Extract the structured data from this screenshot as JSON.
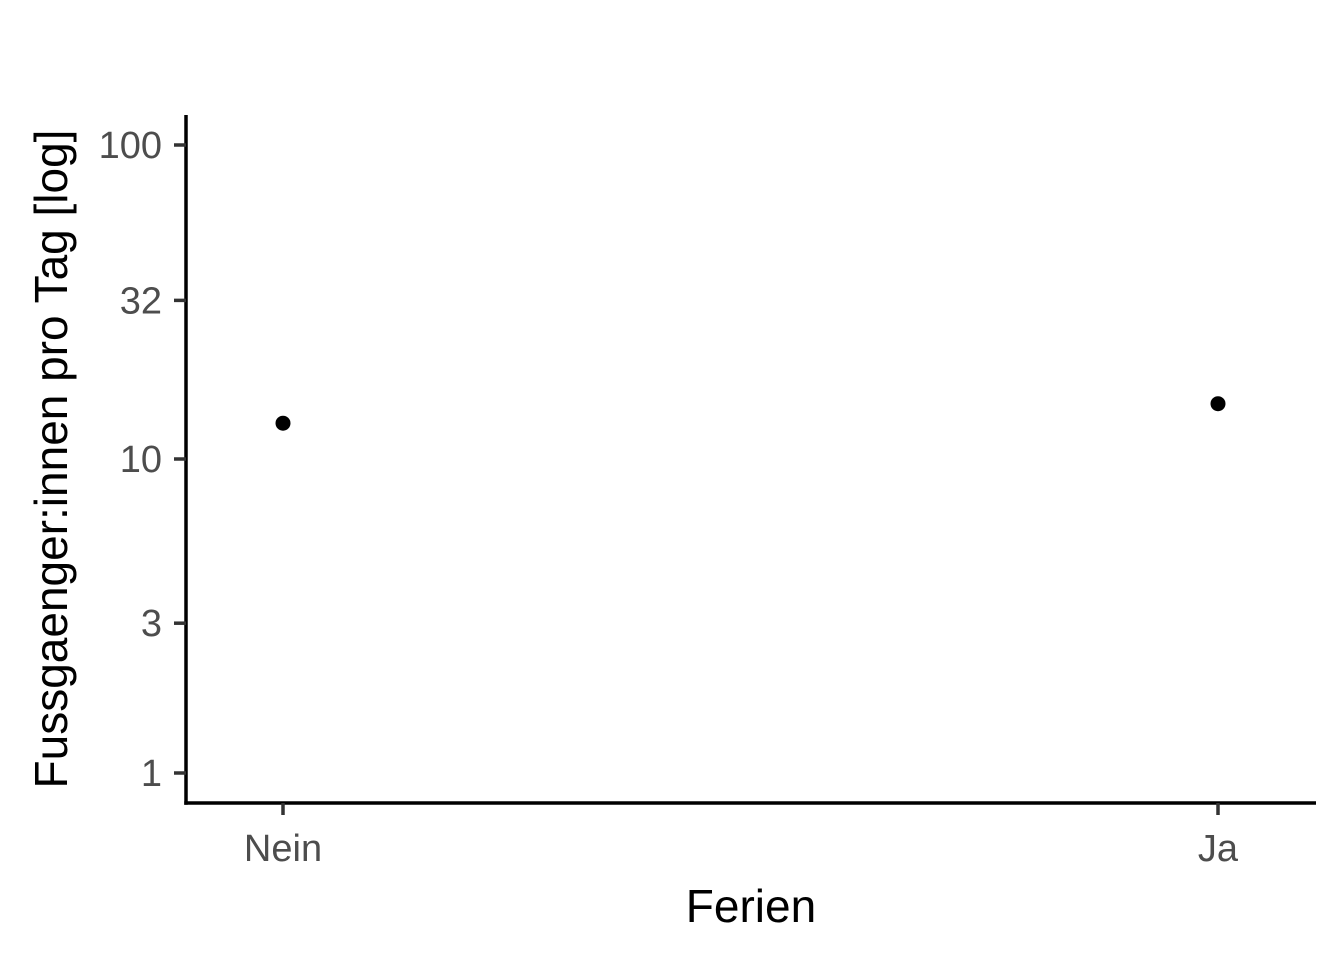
{
  "chart_data": {
    "type": "scatter",
    "xlabel": "Ferien",
    "ylabel": "Fussgaenger:innen pro Tag [log]",
    "categories": [
      "Nein",
      "Ja"
    ],
    "y_scale": "log",
    "y_ticks": [
      1,
      3,
      10,
      32,
      100
    ],
    "y_tick_labels": [
      "1",
      "3",
      "10",
      "32",
      "100"
    ],
    "ylim": [
      0.8,
      125
    ],
    "series": [
      {
        "values": [
          13,
          15
        ]
      }
    ],
    "grid": false,
    "legend": "none",
    "colors": {
      "point": "#000000",
      "axis": "#000000",
      "tick_text": "#4d4d4d"
    }
  }
}
